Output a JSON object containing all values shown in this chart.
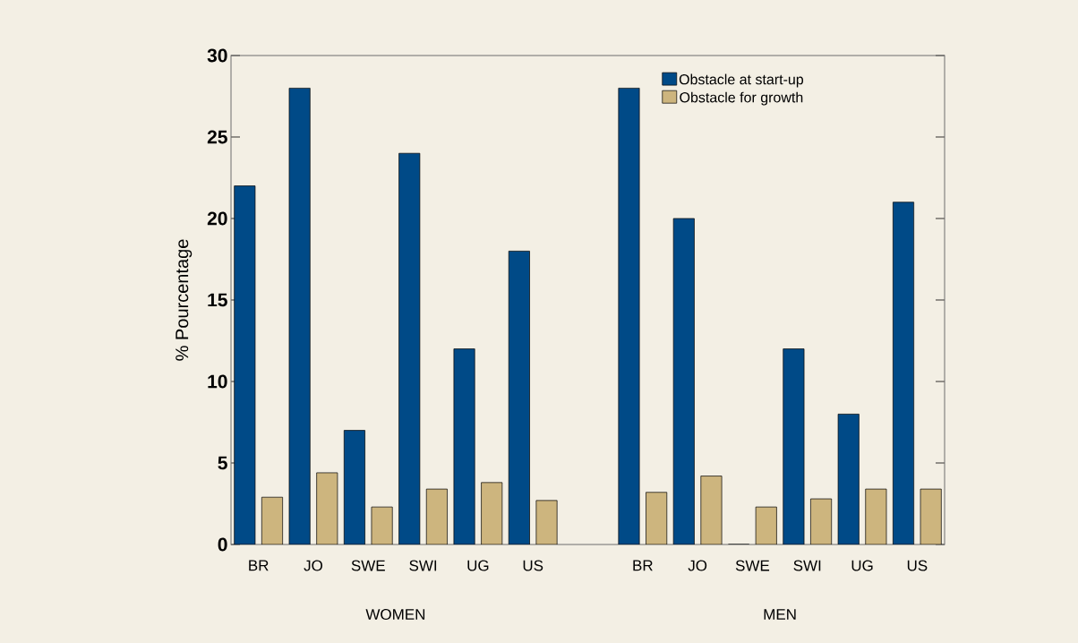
{
  "chart_data": {
    "type": "bar",
    "ylabel": "% Pourcentage",
    "categories": [
      "BR",
      "JO",
      "SWE",
      "SWI",
      "UG",
      "US",
      null,
      "BR",
      "JO",
      "SWE",
      "SWI",
      "UG",
      "US"
    ],
    "series": [
      {
        "name": "Obstacle at start-up",
        "color": "#004a87",
        "values": [
          22,
          28,
          7,
          24,
          12,
          18,
          null,
          28,
          20,
          0,
          12,
          8,
          21
        ]
      },
      {
        "name": "Obstacle for growth",
        "color": "#cdb57e",
        "values": [
          2.9,
          4.4,
          2.3,
          3.4,
          3.8,
          2.7,
          null,
          3.2,
          4.2,
          2.3,
          2.8,
          3.4,
          3.4
        ]
      }
    ],
    "ylim": [
      0,
      30
    ],
    "yticks": [
      0,
      5,
      10,
      15,
      20,
      25,
      30
    ],
    "annotations": [
      "WOMEN",
      "MEN"
    ],
    "legend": "top right",
    "grid": false
  }
}
